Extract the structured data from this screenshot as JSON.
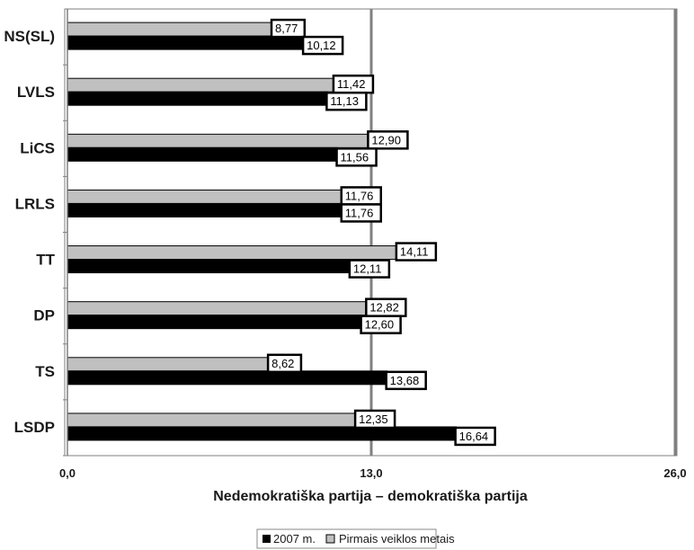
{
  "chart_data": {
    "type": "bar",
    "orientation": "horizontal",
    "categories": [
      "NS(SL)",
      "LVLS",
      "LiCS",
      "LRLS",
      "TT",
      "DP",
      "TS",
      "LSDP"
    ],
    "series": [
      {
        "name": "Pirmais veiklos metais",
        "color": "#c0c0c0",
        "values": [
          8.77,
          11.42,
          12.9,
          11.76,
          14.11,
          12.82,
          8.62,
          12.35
        ],
        "labels": [
          "8,77",
          "11,42",
          "12,90",
          "11,76",
          "14,11",
          "12,82",
          "8,62",
          "12,35"
        ]
      },
      {
        "name": "2007 m.",
        "color": "#000000",
        "values": [
          10.12,
          11.13,
          11.56,
          11.76,
          12.11,
          12.6,
          13.68,
          16.64
        ],
        "labels": [
          "10,12",
          "11,13",
          "11,56",
          "11,76",
          "12,11",
          "12,60",
          "13,68",
          "16,64"
        ]
      }
    ],
    "xlim": [
      0,
      26
    ],
    "xticks": [
      0,
      13,
      26
    ],
    "xtick_labels": [
      "0,0",
      "13,0",
      "26,0"
    ],
    "xlabel": "Nedemokratiška partija – demokratiška partija",
    "ylabel": "",
    "title": "",
    "grid": "vertical at 13,0 and 26,0",
    "legend": {
      "position": "bottom",
      "items": [
        "2007 m.",
        "Pirmais veiklos metais"
      ]
    }
  }
}
